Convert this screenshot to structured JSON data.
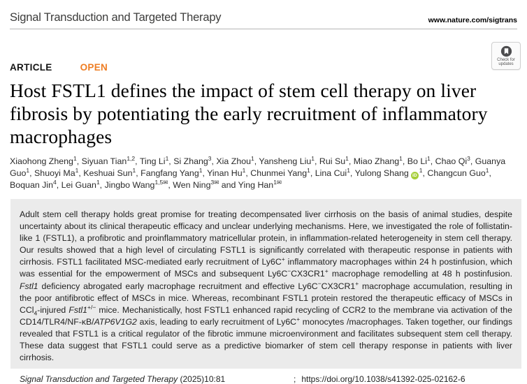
{
  "header": {
    "journal": "Signal Transduction and Targeted Therapy",
    "site_url": "www.nature.com/sigtrans"
  },
  "badge": {
    "line1": "Check for",
    "line2": "updates"
  },
  "article": {
    "type_label": "ARTICLE",
    "open_label": "OPEN",
    "title": "Host FSTL1 defines the impact of stem cell therapy on liver fibrosis by potentiating the early recruitment of inflammatory macrophages",
    "and_separator": "and",
    "authors": [
      {
        "name": "Xiaohong Zheng",
        "sup": "1"
      },
      {
        "name": "Siyuan Tian",
        "sup": "1,2"
      },
      {
        "name": "Ting Li",
        "sup": "1"
      },
      {
        "name": "Si Zhang",
        "sup": "3"
      },
      {
        "name": "Xia Zhou",
        "sup": "1"
      },
      {
        "name": "Yansheng Liu",
        "sup": "1"
      },
      {
        "name": "Rui Su",
        "sup": "1"
      },
      {
        "name": "Miao Zhang",
        "sup": "1"
      },
      {
        "name": "Bo Li",
        "sup": "1"
      },
      {
        "name": "Chao Qi",
        "sup": "3"
      },
      {
        "name": "Guanya Guo",
        "sup": "1"
      },
      {
        "name": "Shuoyi Ma",
        "sup": "1"
      },
      {
        "name": "Keshuai Sun",
        "sup": "1"
      },
      {
        "name": "Fangfang Yang",
        "sup": "1"
      },
      {
        "name": "Yinan Hu",
        "sup": "1"
      },
      {
        "name": "Chunmei Yang",
        "sup": "1"
      },
      {
        "name": "Lina Cui",
        "sup": "1"
      },
      {
        "name": "Yulong Shang",
        "sup": "1",
        "orcid": true
      },
      {
        "name": "Changcun Guo",
        "sup": "1"
      },
      {
        "name": "Boquan Jin",
        "sup": "4"
      },
      {
        "name": "Lei Guan",
        "sup": "1"
      },
      {
        "name": "Jingbo Wang",
        "sup": "1,5",
        "mail": true
      },
      {
        "name": "Wen Ning",
        "sup": "3",
        "mail": true
      },
      {
        "name": "Ying Han",
        "sup": "1",
        "mail": true
      }
    ]
  },
  "abstract": {
    "segments": [
      [
        "n",
        "Adult stem cell therapy holds great promise for treating decompensated liver cirrhosis on the basis of animal studies, despite uncertainty about its clinical therapeutic efficacy and unclear underlying mechanisms. Here, we investigated the role of follistatin-like 1 (FSTL1), a profibrotic and proinflammatory matricellular protein, in inflammation-related heterogeneity in stem cell therapy. Our results showed that a high level of circulating FSTL1 is significantly correlated with therapeutic response in patients with cirrhosis. FSTL1 facilitated MSC-mediated early recruitment of Ly6C"
      ],
      [
        "sup",
        "+"
      ],
      [
        "n",
        " inflammatory macrophages within 24 h postinfusion, which was essential for the empowerment of MSCs and subsequent Ly6C"
      ],
      [
        "sup",
        "−"
      ],
      [
        "n",
        "CX3CR1"
      ],
      [
        "sup",
        "+"
      ],
      [
        "n",
        " macrophage remodelling at 48 h postinfusion. "
      ],
      [
        "i",
        "Fstl1"
      ],
      [
        "n",
        " deficiency abrogated early macrophage recruitment and effective Ly6C"
      ],
      [
        "sup",
        "−"
      ],
      [
        "n",
        "CX3CR1"
      ],
      [
        "sup",
        "+"
      ],
      [
        "n",
        " macrophage accumulation, resulting in the poor antifibrotic effect of MSCs in mice. Whereas, recombinant FSTL1 protein restored the therapeutic efficacy of MSCs in CCl"
      ],
      [
        "sub",
        "4"
      ],
      [
        "n",
        "-injured "
      ],
      [
        "i",
        "Fstl1"
      ],
      [
        "sup",
        "+/−"
      ],
      [
        "n",
        " mice. Mechanistically, host FSTL1 enhanced rapid recycling of CCR2 to the membrane via activation of the CD14/TLR4/NF-κB/"
      ],
      [
        "i",
        "ATP6V1G2"
      ],
      [
        "n",
        " axis, leading to early recruitment of Ly6C"
      ],
      [
        "sup",
        "+"
      ],
      [
        "n",
        " monocytes /macrophages. Taken together, our findings revealed that FSTL1 is a critical regulator of the fibrotic immune microenvironment and facilitates subsequent stem cell therapy. These data suggest that FSTL1 could serve as a predictive biomarker of stem cell therapy response in patients with liver cirrhosis."
      ]
    ]
  },
  "citation": {
    "journal_italic": "Signal Transduction and Targeted Therapy",
    "issue": " (2025)10:81",
    "separator": ";",
    "doi": "https://doi.org/10.1038/s41392-025-02162-6"
  },
  "icons": {
    "orcid_text": "iD",
    "mail_glyph": "✉"
  },
  "colors": {
    "open_orange": "#ee7d23",
    "orcid_green": "#a6ce39",
    "abstract_bg": "#ebebeb"
  }
}
